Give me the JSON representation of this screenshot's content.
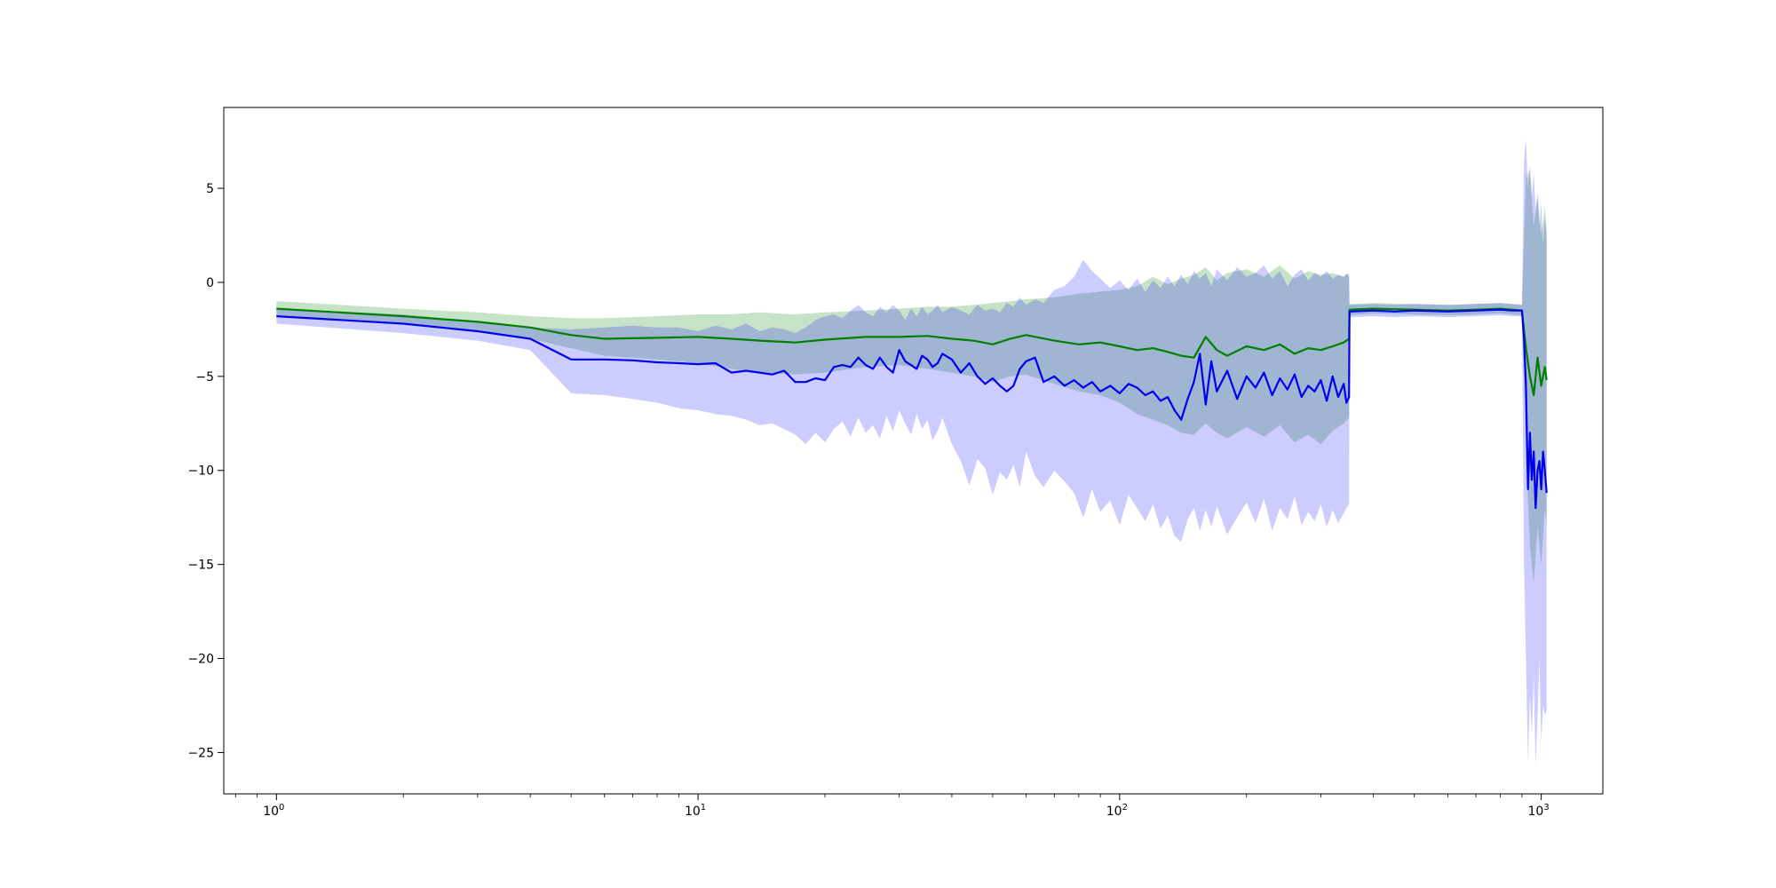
{
  "chart_data": {
    "type": "line",
    "title": "",
    "xlabel": "",
    "ylabel": "",
    "xscale": "log",
    "xlim": [
      0.75,
      1400
    ],
    "ylim": [
      -27.2,
      9.3
    ],
    "grid": false,
    "x_ticks": [
      {
        "value": 1,
        "base": "10",
        "exp": "0"
      },
      {
        "value": 10,
        "base": "10",
        "exp": "1"
      },
      {
        "value": 100,
        "base": "10",
        "exp": "2"
      },
      {
        "value": 1000,
        "base": "10",
        "exp": "3"
      }
    ],
    "y_ticks": [
      {
        "value": 5,
        "label": "5"
      },
      {
        "value": 0,
        "label": "0"
      },
      {
        "value": -5,
        "label": "−5"
      },
      {
        "value": -10,
        "label": "−10"
      },
      {
        "value": -15,
        "label": "−15"
      },
      {
        "value": -20,
        "label": "−20"
      },
      {
        "value": -25,
        "label": "−25"
      }
    ],
    "series": [
      {
        "color": "#008000",
        "band_color": "#008000",
        "x": [
          1,
          2,
          3,
          4,
          5,
          6,
          8,
          10,
          12,
          14,
          17,
          20,
          25,
          30,
          35,
          40,
          45,
          50,
          55,
          60,
          70,
          80,
          90,
          100,
          110,
          120,
          130,
          140,
          150,
          160,
          170,
          180,
          200,
          220,
          240,
          260,
          280,
          300,
          320,
          340,
          350,
          351,
          400,
          500,
          600,
          700,
          800,
          900,
          920,
          940,
          960,
          980,
          1000,
          1020,
          1030
        ],
        "y": [
          -1.4,
          -1.8,
          -2.1,
          -2.4,
          -2.8,
          -3.0,
          -2.95,
          -2.9,
          -3.0,
          -3.1,
          -3.2,
          -3.05,
          -2.9,
          -2.9,
          -2.85,
          -3.0,
          -3.1,
          -3.3,
          -3.0,
          -2.8,
          -3.1,
          -3.3,
          -3.2,
          -3.4,
          -3.6,
          -3.5,
          -3.7,
          -3.9,
          -4.0,
          -2.9,
          -3.6,
          -3.9,
          -3.4,
          -3.6,
          -3.3,
          -3.8,
          -3.5,
          -3.6,
          -3.4,
          -3.2,
          -3.0,
          -1.45,
          -1.4,
          -1.45,
          -1.5,
          -1.45,
          -1.4,
          -1.5,
          -3.5,
          -5.0,
          -6.0,
          -4.0,
          -5.5,
          -4.5,
          -5.2
        ],
        "lower": [
          -1.8,
          -2.2,
          -2.6,
          -3.0,
          -3.5,
          -3.9,
          -4.1,
          -4.3,
          -4.6,
          -4.8,
          -4.9,
          -4.8,
          -4.5,
          -4.4,
          -4.6,
          -4.8,
          -5.0,
          -5.3,
          -5.0,
          -4.9,
          -5.4,
          -5.8,
          -6.0,
          -6.4,
          -7.0,
          -7.3,
          -7.6,
          -8.0,
          -8.1,
          -7.5,
          -8.0,
          -8.3,
          -7.7,
          -8.2,
          -7.6,
          -8.5,
          -8.1,
          -8.6,
          -7.9,
          -7.5,
          -7.2,
          -1.75,
          -1.65,
          -1.7,
          -1.75,
          -1.7,
          -1.65,
          -1.75,
          -9.0,
          -14.0,
          -16.0,
          -13.0,
          -15.0,
          -12.0,
          -13.0
        ],
        "upper": [
          -1.0,
          -1.4,
          -1.6,
          -1.8,
          -1.9,
          -1.9,
          -1.8,
          -1.7,
          -1.7,
          -1.6,
          -1.7,
          -1.6,
          -1.5,
          -1.4,
          -1.3,
          -1.3,
          -1.2,
          -1.1,
          -1.0,
          -0.9,
          -0.8,
          -0.6,
          -0.5,
          -0.4,
          -0.2,
          0.3,
          -0.1,
          0.2,
          0.4,
          0.8,
          0.1,
          0.5,
          0.7,
          0.3,
          0.9,
          0.2,
          0.6,
          0.4,
          0.5,
          0.3,
          0.5,
          -1.15,
          -1.1,
          -1.15,
          -1.2,
          -1.15,
          -1.1,
          -1.2,
          5.5,
          6.0,
          3.0,
          4.5,
          2.5,
          4.0,
          2.8
        ]
      },
      {
        "color": "#0000ee",
        "band_color": "#0000ff",
        "x": [
          1,
          2,
          3,
          4,
          5,
          6,
          7,
          8,
          9,
          10,
          11,
          12,
          13,
          14,
          15,
          16,
          17,
          18,
          19,
          20,
          21,
          22,
          23,
          24,
          25,
          26,
          27,
          28,
          29,
          30,
          31,
          32,
          33,
          34,
          35,
          36,
          37,
          38,
          40,
          42,
          44,
          46,
          48,
          50,
          52,
          54,
          56,
          58,
          60,
          63,
          66,
          70,
          74,
          78,
          82,
          86,
          90,
          95,
          100,
          105,
          110,
          115,
          120,
          125,
          130,
          135,
          140,
          145,
          150,
          155,
          160,
          165,
          170,
          180,
          190,
          200,
          210,
          220,
          230,
          240,
          250,
          260,
          270,
          280,
          290,
          300,
          310,
          320,
          330,
          340,
          345,
          350,
          351,
          400,
          450,
          500,
          600,
          700,
          800,
          850,
          900,
          910,
          920,
          930,
          940,
          950,
          960,
          970,
          980,
          990,
          1000,
          1010,
          1020,
          1030
        ],
        "y": [
          -1.8,
          -2.2,
          -2.6,
          -3.0,
          -4.1,
          -4.1,
          -4.15,
          -4.25,
          -4.3,
          -4.35,
          -4.3,
          -4.8,
          -4.7,
          -4.8,
          -4.9,
          -4.7,
          -5.3,
          -5.3,
          -5.1,
          -5.2,
          -4.5,
          -4.4,
          -4.5,
          -4.0,
          -4.4,
          -4.6,
          -4.0,
          -4.5,
          -4.8,
          -3.6,
          -4.2,
          -4.4,
          -4.6,
          -3.9,
          -4.1,
          -4.5,
          -4.3,
          -3.8,
          -4.1,
          -4.8,
          -4.3,
          -5.0,
          -5.4,
          -5.1,
          -5.5,
          -5.8,
          -5.5,
          -4.6,
          -4.2,
          -4.0,
          -5.3,
          -5.0,
          -5.5,
          -5.2,
          -5.6,
          -5.3,
          -5.8,
          -5.5,
          -5.9,
          -5.4,
          -5.6,
          -6.0,
          -5.8,
          -6.3,
          -6.1,
          -6.8,
          -7.3,
          -6.2,
          -5.3,
          -3.8,
          -6.5,
          -4.2,
          -5.8,
          -4.7,
          -6.2,
          -5.0,
          -5.6,
          -4.8,
          -6.0,
          -5.1,
          -5.7,
          -4.9,
          -6.1,
          -5.5,
          -5.8,
          -5.2,
          -6.3,
          -5.0,
          -6.1,
          -5.4,
          -6.4,
          -6.1,
          -1.55,
          -1.5,
          -1.55,
          -1.5,
          -1.55,
          -1.5,
          -1.45,
          -1.5,
          -1.5,
          -3.0,
          -5.5,
          -11.0,
          -8.0,
          -10.5,
          -9.0,
          -12.0,
          -10.0,
          -9.5,
          -11.0,
          -9.0,
          -10.0,
          -11.2
        ],
        "lower": [
          -2.2,
          -2.7,
          -3.1,
          -3.6,
          -5.9,
          -6.0,
          -6.2,
          -6.4,
          -6.7,
          -6.8,
          -7.0,
          -7.1,
          -7.3,
          -7.6,
          -7.5,
          -7.8,
          -8.1,
          -8.6,
          -8.0,
          -8.5,
          -7.8,
          -7.4,
          -8.2,
          -7.2,
          -8.0,
          -7.6,
          -8.3,
          -7.1,
          -7.9,
          -6.8,
          -7.5,
          -8.1,
          -7.0,
          -7.8,
          -7.3,
          -8.4,
          -7.9,
          -7.2,
          -8.6,
          -9.5,
          -10.8,
          -9.4,
          -9.9,
          -11.3,
          -10.1,
          -10.5,
          -9.7,
          -10.9,
          -9.0,
          -10.3,
          -10.9,
          -10.0,
          -10.6,
          -11.2,
          -12.5,
          -11.0,
          -12.2,
          -11.6,
          -12.9,
          -11.3,
          -12.0,
          -12.7,
          -11.8,
          -13.1,
          -12.4,
          -13.5,
          -13.8,
          -12.6,
          -12.0,
          -13.2,
          -12.1,
          -13.0,
          -11.9,
          -13.4,
          -12.5,
          -11.7,
          -12.8,
          -11.5,
          -13.2,
          -12.0,
          -12.6,
          -11.4,
          -12.9,
          -12.2,
          -12.7,
          -11.8,
          -13.0,
          -12.1,
          -12.8,
          -12.3,
          -12.0,
          -11.8,
          -1.85,
          -1.8,
          -1.85,
          -1.8,
          -1.85,
          -1.8,
          -1.75,
          -1.8,
          -1.8,
          -15.0,
          -20.0,
          -25.5,
          -22.0,
          -24.0,
          -21.0,
          -25.7,
          -23.0,
          -20.0,
          -24.5,
          -22.5,
          -23.0,
          -22.8
        ],
        "upper": [
          -1.4,
          -1.7,
          -2.1,
          -2.4,
          -2.5,
          -2.4,
          -2.3,
          -2.4,
          -2.4,
          -2.6,
          -2.3,
          -2.5,
          -2.2,
          -2.6,
          -2.4,
          -2.5,
          -2.7,
          -2.4,
          -2.0,
          -1.8,
          -1.7,
          -1.9,
          -1.5,
          -1.2,
          -1.6,
          -1.8,
          -1.3,
          -1.6,
          -1.2,
          -1.5,
          -2.0,
          -1.4,
          -1.8,
          -1.3,
          -1.7,
          -1.5,
          -1.2,
          -1.6,
          -1.3,
          -1.5,
          -1.7,
          -1.2,
          -1.5,
          -1.4,
          -1.6,
          -1.1,
          -1.3,
          -0.8,
          -1.2,
          -0.9,
          -1.1,
          -0.4,
          -0.2,
          0.3,
          1.2,
          0.6,
          0.2,
          -0.3,
          0.1,
          -0.4,
          0.2,
          -0.5,
          0.1,
          -0.3,
          0.3,
          -0.2,
          0.4,
          -0.1,
          0.6,
          0.2,
          0.5,
          -0.2,
          0.7,
          0.1,
          0.8,
          0.3,
          0.5,
          0.9,
          0.2,
          0.6,
          -0.2,
          0.4,
          0.7,
          0.1,
          0.5,
          0.3,
          0.6,
          0.2,
          0.4,
          0.3,
          0.5,
          0.3,
          -1.2,
          -1.15,
          -1.2,
          -1.15,
          -1.2,
          -1.15,
          -1.1,
          -1.15,
          -1.2,
          6.5,
          7.6,
          5.0,
          6.2,
          4.5,
          5.8,
          3.8,
          4.8,
          3.0,
          4.2,
          2.0,
          3.5,
          2.5
        ]
      }
    ]
  }
}
